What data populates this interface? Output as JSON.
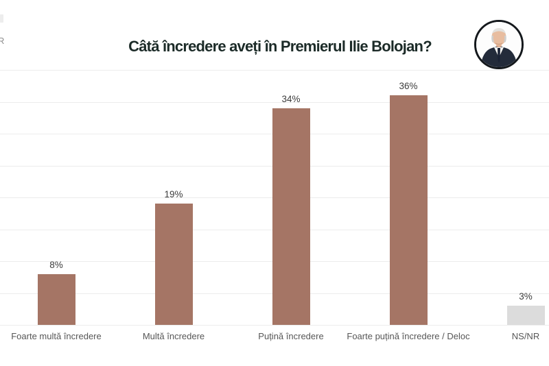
{
  "page": {
    "background": "#ffffff",
    "logo_fragment": "R"
  },
  "header": {
    "title": "Câtă încredere aveți în Premierul Ilie Bolojan?",
    "title_color": "#1c2b28",
    "portrait_border_color": "#14181c"
  },
  "chart_data": {
    "type": "bar",
    "title": "Câtă încredere aveți în Premierul Ilie Bolojan?",
    "categories": [
      "Foarte multă încredere",
      "Multă încredere",
      "Puțină încredere",
      "Foarte puțină încredere / Deloc",
      "NS/NR"
    ],
    "values": [
      8,
      19,
      34,
      36,
      3
    ],
    "value_labels": [
      "8%",
      "19%",
      "34%",
      "36%",
      "3%"
    ],
    "bar_colors": [
      "#a57565",
      "#a57565",
      "#a57565",
      "#a57565",
      "#dcdcdc"
    ],
    "xlabel": "",
    "ylabel": "",
    "ylim": [
      0,
      40
    ],
    "grid_step": 5,
    "grid": true,
    "y_tick_labels_visible": false,
    "legend": false,
    "gridline_color": "#ececec",
    "value_label_color": "#3c3c3c",
    "category_label_color": "#565656"
  }
}
